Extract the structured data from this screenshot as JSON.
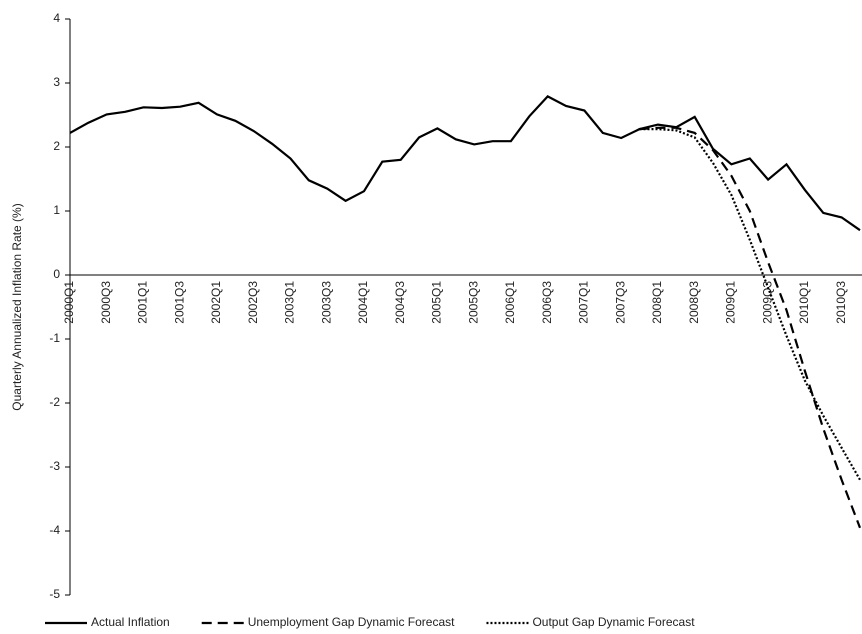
{
  "chart_data": {
    "type": "line",
    "y_label": "Quarterly Annualized Inflation Rate (%)",
    "categories": [
      "2000Q1",
      null,
      "2000Q3",
      null,
      "2001Q1",
      null,
      "2001Q3",
      null,
      "2002Q1",
      null,
      "2002Q3",
      null,
      "2003Q1",
      null,
      "2003Q3",
      null,
      "2004Q1",
      null,
      "2004Q3",
      null,
      "2005Q1",
      null,
      "2005Q3",
      null,
      "2006Q1",
      null,
      "2006Q3",
      null,
      "2007Q1",
      null,
      "2007Q3",
      null,
      "2008Q1",
      null,
      "2008Q3",
      null,
      "2009Q1",
      null,
      "2009Q3",
      null,
      "2010Q1",
      null,
      "2010Q3",
      null
    ],
    "series": [
      {
        "name": "Actual Inflation",
        "color": "#000000",
        "dash": "solid",
        "values": [
          2.22,
          2.38,
          2.51,
          2.55,
          2.62,
          2.61,
          2.63,
          2.69,
          2.51,
          2.41,
          2.25,
          2.05,
          1.82,
          1.48,
          1.35,
          1.16,
          1.31,
          1.77,
          1.8,
          2.15,
          2.29,
          2.12,
          2.04,
          2.09,
          2.09,
          2.48,
          2.79,
          2.64,
          2.57,
          2.22,
          2.14,
          2.28,
          2.35,
          2.31,
          2.47,
          1.97,
          1.73,
          1.82,
          1.49,
          1.73,
          1.33,
          0.97,
          0.9,
          0.7
        ]
      },
      {
        "name": "Unemployment Gap Dynamic Forecast",
        "color": "#000000",
        "dash": "dashed",
        "values": [
          null,
          null,
          null,
          null,
          null,
          null,
          null,
          null,
          null,
          null,
          null,
          null,
          null,
          null,
          null,
          null,
          null,
          null,
          null,
          null,
          null,
          null,
          null,
          null,
          null,
          null,
          null,
          null,
          null,
          null,
          null,
          2.28,
          2.3,
          2.3,
          2.22,
          1.95,
          1.55,
          1.0,
          0.2,
          -0.55,
          -1.5,
          -2.4,
          -3.2,
          -3.95
        ]
      },
      {
        "name": "Output Gap Dynamic Forecast",
        "color": "#000000",
        "dash": "dotted",
        "values": [
          null,
          null,
          null,
          null,
          null,
          null,
          null,
          null,
          null,
          null,
          null,
          null,
          null,
          null,
          null,
          null,
          null,
          null,
          null,
          null,
          null,
          null,
          null,
          null,
          null,
          null,
          null,
          null,
          null,
          null,
          null,
          2.28,
          2.28,
          2.26,
          2.15,
          1.75,
          1.25,
          0.55,
          -0.2,
          -0.95,
          -1.65,
          -2.2,
          -2.7,
          -3.2
        ]
      }
    ],
    "ylim": [
      -5,
      4
    ],
    "yticks": [
      -5,
      -4,
      -3,
      -2,
      -1,
      0,
      1,
      2,
      3,
      4
    ],
    "legend": "bottom"
  }
}
